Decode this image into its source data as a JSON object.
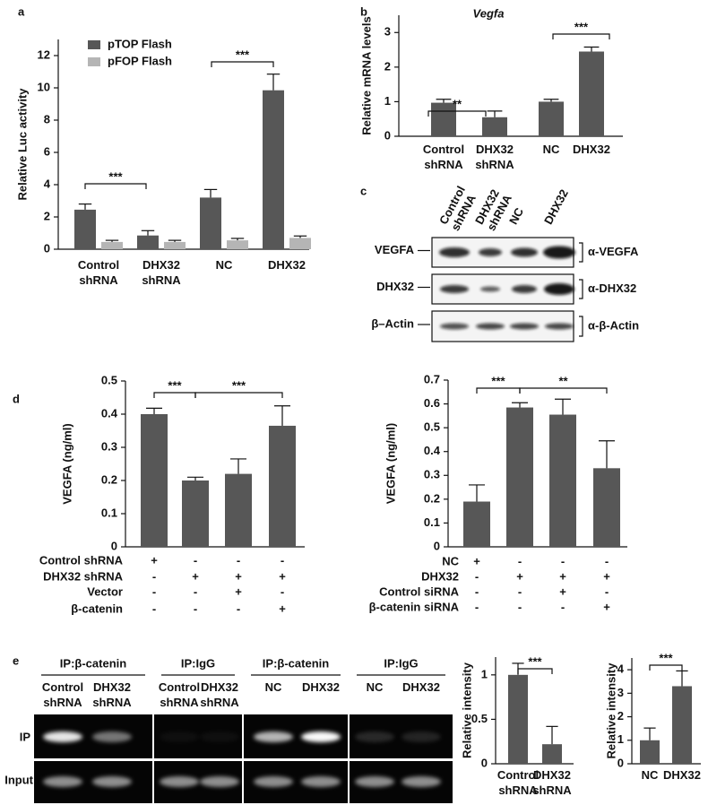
{
  "chart_data": [
    {
      "type": "bar",
      "panel": "a",
      "ylabel": "Relative Luc activity",
      "categories": [
        "Control shRNA",
        "DHX32 shRNA",
        "NC",
        "DHX32"
      ],
      "series": [
        {
          "name": "pTOP Flash",
          "color": "#575757",
          "values": [
            2.45,
            0.85,
            3.2,
            9.85
          ],
          "errors": [
            0.35,
            0.3,
            0.5,
            1.0
          ]
        },
        {
          "name": "pFOP Flash",
          "color": "#b5b5b5",
          "values": [
            0.45,
            0.45,
            0.55,
            0.7
          ],
          "errors": [
            0.1,
            0.1,
            0.12,
            0.12
          ]
        }
      ],
      "ylim": [
        0,
        13
      ],
      "yticks": [
        0,
        2,
        4,
        6,
        8,
        10,
        12
      ],
      "annotations": [
        "***",
        "***"
      ]
    },
    {
      "type": "bar",
      "panel": "b",
      "title": "Vegfa",
      "ylabel": "Relative mRNA levels",
      "categories": [
        "Control shRNA",
        "DHX32 shRNA",
        "NC",
        "DHX32"
      ],
      "color": "#575757",
      "values": [
        0.97,
        0.55,
        1.0,
        2.45
      ],
      "errors": [
        0.1,
        0.18,
        0.07,
        0.13
      ],
      "ylim": [
        0,
        3.5
      ],
      "yticks": [
        0,
        1,
        2,
        3
      ],
      "annotations": [
        "**",
        "***"
      ]
    },
    {
      "type": "bar",
      "panel": "d",
      "ylabel": "VEGFA (ng/ml)",
      "color": "#575757",
      "values": [
        0.4,
        0.2,
        0.22,
        0.365
      ],
      "errors": [
        0.018,
        0.01,
        0.045,
        0.06
      ],
      "ylim": [
        0,
        0.5
      ],
      "yticks": [
        0,
        0.1,
        0.2,
        0.3,
        0.4,
        0.5
      ],
      "annotations": [
        "***",
        "***"
      ],
      "conditions": [
        {
          "label": "Control shRNA",
          "marks": [
            "+",
            "-",
            "-",
            "-"
          ]
        },
        {
          "label": "DHX32 shRNA",
          "marks": [
            "-",
            "+",
            "+",
            "+"
          ]
        },
        {
          "label": "Vector",
          "marks": [
            "-",
            "-",
            "+",
            "-"
          ]
        },
        {
          "label": "β-catenin",
          "marks": [
            "-",
            "-",
            "-",
            "+"
          ]
        }
      ]
    },
    {
      "type": "bar",
      "ylabel": "VEGFA (ng/ml)",
      "color": "#575757",
      "values": [
        0.19,
        0.585,
        0.555,
        0.33
      ],
      "errors": [
        0.07,
        0.02,
        0.065,
        0.115
      ],
      "ylim": [
        0,
        0.7
      ],
      "yticks": [
        0,
        0.1,
        0.2,
        0.3,
        0.4,
        0.5,
        0.6,
        0.7
      ],
      "annotations": [
        "***",
        "**"
      ],
      "conditions": [
        {
          "label": "NC",
          "marks": [
            "+",
            "-",
            "-",
            "-"
          ]
        },
        {
          "label": "DHX32",
          "marks": [
            "-",
            "+",
            "+",
            "+"
          ]
        },
        {
          "label": "Control siRNA",
          "marks": [
            "-",
            "-",
            "+",
            "-"
          ]
        },
        {
          "label": "β-catenin siRNA",
          "marks": [
            "-",
            "-",
            "-",
            "+"
          ]
        }
      ]
    },
    {
      "type": "bar",
      "ylabel": "Relative intensity",
      "categories": [
        "Control shRNA",
        "DHX32 shRNA"
      ],
      "color": "#575757",
      "values": [
        1.0,
        0.22
      ],
      "errors": [
        0.13,
        0.2
      ],
      "ylim": [
        0,
        1.2
      ],
      "yticks": [
        0,
        0.5,
        1
      ],
      "annotations": [
        "***"
      ]
    },
    {
      "type": "bar",
      "ylabel": "Relative intensity",
      "categories": [
        "NC",
        "DHX32"
      ],
      "color": "#575757",
      "values": [
        1.0,
        3.3
      ],
      "errors": [
        0.52,
        0.65
      ],
      "ylim": [
        0,
        4.5
      ],
      "yticks": [
        0,
        1,
        2,
        3,
        4
      ],
      "annotations": [
        "***"
      ]
    }
  ],
  "blot": {
    "panel": "c",
    "lanes": [
      "Control shRNA",
      "DHX32 shRNA",
      "NC",
      "DHX32"
    ],
    "rows": [
      {
        "label": "VEGFA",
        "antibody": "α-VEGFA"
      },
      {
        "label": "DHX32",
        "antibody": "α-DHX32"
      },
      {
        "label": "β–Actin",
        "antibody": "α-β-Actin"
      }
    ]
  },
  "gel": {
    "panel": "e",
    "groups": [
      {
        "title": "IP:β-catenin",
        "lanes": [
          "Control shRNA",
          "DHX32 shRNA"
        ]
      },
      {
        "title": "IP:IgG",
        "lanes": [
          "Control shRNA",
          "DHX32 shRNA"
        ]
      },
      {
        "title": "IP:β-catenin",
        "lanes": [
          "NC",
          "DHX32"
        ]
      },
      {
        "title": "IP:IgG",
        "lanes": [
          "NC",
          "DHX32"
        ]
      }
    ],
    "rows": [
      "IP",
      "Input"
    ]
  }
}
